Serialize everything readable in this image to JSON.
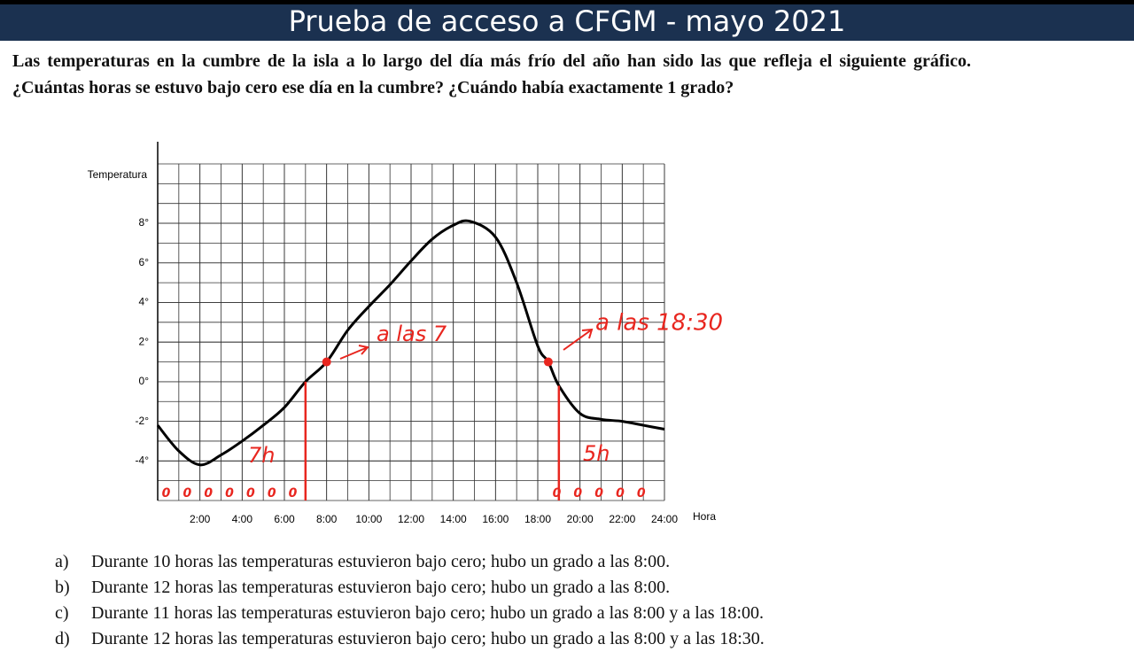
{
  "header": {
    "title": "Prueba de acceso a CFGM - mayo 2021"
  },
  "question": "Las temperaturas en la cumbre de la isla a lo largo del día más frío del año han sido las que refleja el siguiente gráfico. ¿Cuántas horas se estuvo bajo cero ese día en la cumbre? ¿Cuándo había exactamente 1 grado?",
  "chart_data": {
    "type": "line",
    "y_label": "Temperatura",
    "x_label": "Hora",
    "x": [
      0,
      1,
      2,
      3,
      4,
      5,
      6,
      7,
      8,
      9,
      10,
      11,
      12,
      13,
      14,
      14.8,
      16,
      17,
      18,
      18.5,
      19,
      20,
      21,
      22,
      23,
      24
    ],
    "series": [
      {
        "color": "#000000",
        "values": [
          -2.2,
          -3.5,
          -4.2,
          -3.7,
          -3,
          -2.2,
          -1.3,
          0,
          1,
          2.6,
          3.8,
          4.9,
          6.1,
          7.2,
          7.9,
          8.1,
          7.3,
          5,
          1.8,
          1,
          -0.2,
          -1.6,
          -1.9,
          -2,
          -2.2,
          -2.4
        ]
      }
    ],
    "xlim": [
      0,
      24
    ],
    "ylim": [
      -6,
      11
    ],
    "xticks": [
      {
        "value": 2,
        "label": "2:00"
      },
      {
        "value": 4,
        "label": "4:00"
      },
      {
        "value": 6,
        "label": "6:00"
      },
      {
        "value": 8,
        "label": "8:00"
      },
      {
        "value": 10,
        "label": "10:00"
      },
      {
        "value": 12,
        "label": "12:00"
      },
      {
        "value": 14,
        "label": "14:00"
      },
      {
        "value": 16,
        "label": "16:00"
      },
      {
        "value": 18,
        "label": "18:00"
      },
      {
        "value": 20,
        "label": "20:00"
      },
      {
        "value": 22,
        "label": "22:00"
      },
      {
        "value": 24,
        "label": "24:00"
      }
    ],
    "yticks": [
      {
        "value": 8,
        "label": "8°"
      },
      {
        "value": 6,
        "label": "6°"
      },
      {
        "value": 4,
        "label": "4°"
      },
      {
        "value": 2,
        "label": "2°"
      },
      {
        "value": 0,
        "label": "0°"
      },
      {
        "value": -2,
        "label": "-2°"
      },
      {
        "value": -4,
        "label": "-4°"
      }
    ],
    "grid": true,
    "annotations": [
      "a las 7",
      "a las 18:30",
      "7h",
      "5h"
    ],
    "hand_zeros": [
      "0",
      "0",
      "0",
      "0",
      "0",
      "0",
      "0",
      "0",
      "0",
      "0",
      "0",
      "0"
    ],
    "annotation_color": "#e8261f"
  },
  "options": [
    {
      "letter": "a)",
      "text": "Durante 10 horas las temperaturas estuvieron bajo cero; hubo un grado a las 8:00."
    },
    {
      "letter": "b)",
      "text": "Durante 12 horas las temperaturas estuvieron bajo cero; hubo un grado a las 8:00."
    },
    {
      "letter": "c)",
      "text": "Durante 11 horas las temperaturas estuvieron bajo cero; hubo un grado a las 8:00 y a las 18:00."
    },
    {
      "letter": "d)",
      "text": "Durante 12 horas las temperaturas estuvieron bajo cero; hubo un grado a las 8:00 y a las 18:30."
    }
  ]
}
